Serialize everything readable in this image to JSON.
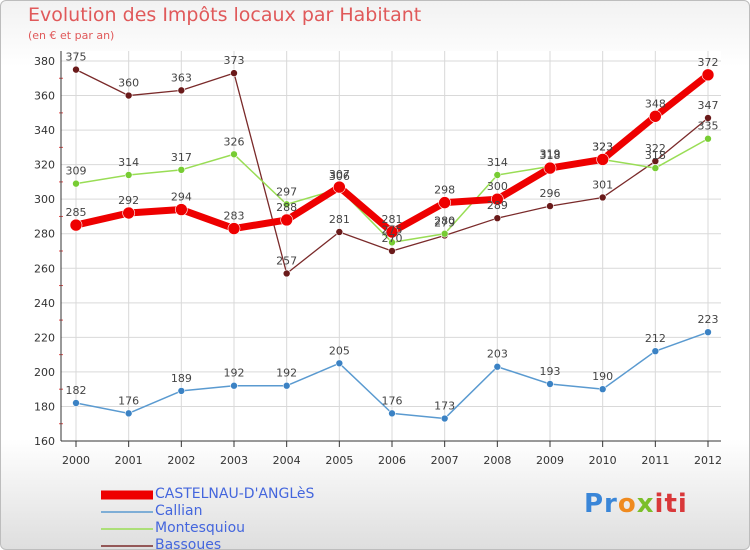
{
  "header": {
    "title": "Evolution des Impôts locaux par Habitant",
    "subtitle": "(en € et par an)"
  },
  "logo": {
    "text": "Proxiti",
    "parts": [
      "Pr",
      "o",
      "x",
      "iti"
    ]
  },
  "colors": {
    "castelnau": "#ee0000",
    "callian": "#5a9ad0",
    "montesquiou": "#99dd55",
    "bassoues": "#7a2a2a",
    "grid": "#d9d9d9",
    "axis": "#333333",
    "title": "#e0595a",
    "legend_text": "#4466dd"
  },
  "chart_data": {
    "type": "line",
    "title": "Evolution des Impôts locaux par Habitant",
    "subtitle": "(en € et par an)",
    "xlabel": "",
    "ylabel": "",
    "x": [
      "2000",
      "2001",
      "2002",
      "2003",
      "2004",
      "2005",
      "2006",
      "2007",
      "2008",
      "2009",
      "2010",
      "2011",
      "2012"
    ],
    "ylim": [
      160,
      380
    ],
    "yticks": [
      160,
      180,
      200,
      220,
      240,
      260,
      280,
      300,
      320,
      340,
      360,
      380
    ],
    "grid": true,
    "legend_position": "bottom-left",
    "series": [
      {
        "name": "CASTELNAU-D'ANGLèS",
        "key": "castelnau",
        "values": [
          285,
          292,
          294,
          283,
          288,
          307,
          281,
          298,
          300,
          318,
          323,
          348,
          372
        ],
        "labels": [
          "285",
          "292",
          "294",
          "283",
          "288",
          "307",
          "281",
          "298",
          "300",
          "318",
          "323",
          "348",
          "372"
        ]
      },
      {
        "name": "Callian",
        "key": "callian",
        "values": [
          182,
          176,
          189,
          192,
          192,
          205,
          176,
          173,
          203,
          193,
          190,
          212,
          223
        ],
        "labels": [
          "182",
          "176",
          "189",
          "192",
          "192",
          "205",
          "176",
          "173",
          "203",
          "193",
          "190",
          "212",
          "223"
        ]
      },
      {
        "name": "Montesquiou",
        "key": "montesquiou",
        "values": [
          309,
          314,
          317,
          326,
          297,
          306,
          275,
          280,
          314,
          319,
          323,
          318,
          335
        ],
        "labels": [
          "309",
          "314",
          "317",
          "326",
          "297",
          "306",
          "275",
          "280",
          "314",
          "319",
          "323",
          "318",
          "335"
        ]
      },
      {
        "name": "Bassoues",
        "key": "bassoues",
        "values": [
          375,
          360,
          363,
          373,
          257,
          281,
          270,
          279,
          289,
          296,
          301,
          322,
          347
        ],
        "labels": [
          "375",
          "360",
          "363",
          "373",
          "257",
          "281",
          "270",
          "279",
          "289",
          "296",
          "301",
          "322",
          "347"
        ]
      }
    ]
  }
}
